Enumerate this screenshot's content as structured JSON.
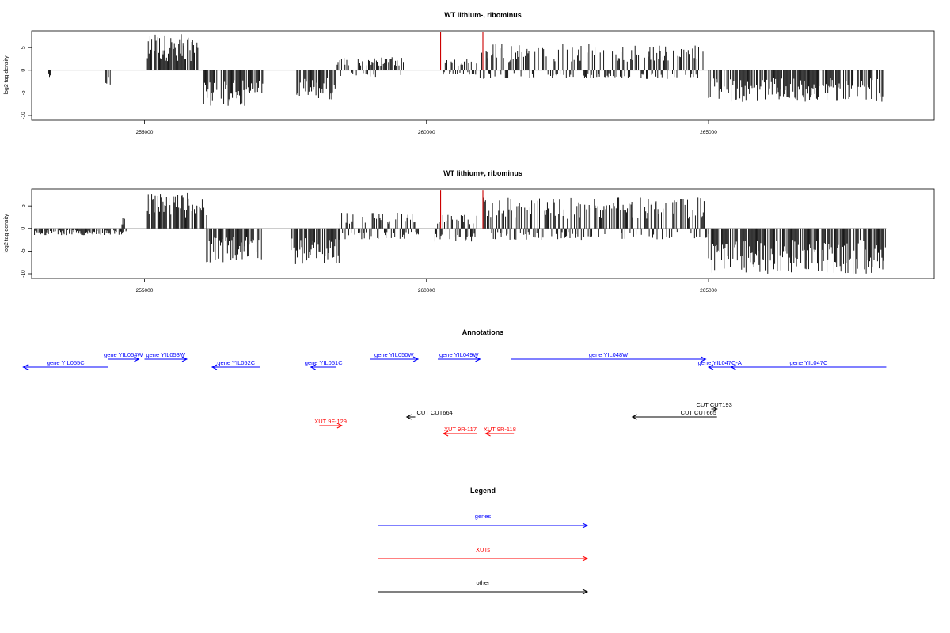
{
  "chart_data": [
    {
      "type": "bar",
      "title": "WT lithium-, ribominus",
      "ylabel": "log2 tag density",
      "xlabel": "",
      "xlim": [
        253000,
        269000
      ],
      "ylim": [
        -10,
        8
      ],
      "x_ticks": [
        255000,
        260000,
        265000
      ],
      "x_tick_labels": [
        "255000",
        "260000",
        "265000"
      ],
      "y_ticks": [
        -10,
        -5,
        0,
        5
      ],
      "y_tick_labels": [
        "-10",
        "-5",
        "0",
        "5"
      ],
      "series": [
        {
          "color": "#000000",
          "regions": [
            {
              "x0": 253300,
              "x1": 253350,
              "min": -1.5,
              "max": 0
            },
            {
              "x0": 254300,
              "x1": 254400,
              "min": -3.5,
              "max": 0
            },
            {
              "x0": 255050,
              "x1": 255950,
              "min": 0,
              "max": 8
            },
            {
              "x0": 256050,
              "x1": 256850,
              "min": -8,
              "max": 0
            },
            {
              "x0": 256850,
              "x1": 257100,
              "min": -6,
              "max": 0
            },
            {
              "x0": 257700,
              "x1": 258400,
              "min": -6.5,
              "max": 0
            },
            {
              "x0": 258400,
              "x1": 259600,
              "min": -1.5,
              "max": 3
            },
            {
              "x0": 260300,
              "x1": 260900,
              "min": -1,
              "max": 2.5
            },
            {
              "x0": 260950,
              "x1": 264950,
              "min": -2,
              "max": 6
            },
            {
              "x0": 265000,
              "x1": 268100,
              "min": -7,
              "max": 0
            }
          ]
        },
        {
          "color": "#cc0000",
          "spikes": [
            {
              "x": 260250,
              "value": 8.5
            },
            {
              "x": 261000,
              "value": 8.5
            }
          ]
        }
      ]
    },
    {
      "type": "bar",
      "title": "WT lithium+, ribominus",
      "ylabel": "log2 tag density",
      "xlabel": "",
      "xlim": [
        253000,
        269000
      ],
      "ylim": [
        -10,
        8
      ],
      "x_ticks": [
        255000,
        260000,
        265000
      ],
      "x_tick_labels": [
        "255000",
        "260000",
        "265000"
      ],
      "y_ticks": [
        -10,
        -5,
        0,
        5
      ],
      "y_tick_labels": [
        "-10",
        "-5",
        "0",
        "5"
      ],
      "series": [
        {
          "color": "#000000",
          "regions": [
            {
              "x0": 253050,
              "x1": 254700,
              "min": -1.5,
              "max": 0
            },
            {
              "x0": 254600,
              "x1": 254650,
              "min": 0,
              "max": 3.5
            },
            {
              "x0": 255050,
              "x1": 256100,
              "min": 0,
              "max": 8
            },
            {
              "x0": 256100,
              "x1": 257100,
              "min": -7.5,
              "max": 0
            },
            {
              "x0": 257600,
              "x1": 258450,
              "min": -8,
              "max": 0
            },
            {
              "x0": 258450,
              "x1": 259900,
              "min": -2.5,
              "max": 3.5
            },
            {
              "x0": 260150,
              "x1": 260900,
              "min": -3,
              "max": 3
            },
            {
              "x0": 261000,
              "x1": 265000,
              "min": -2.5,
              "max": 7
            },
            {
              "x0": 265000,
              "x1": 268150,
              "min": -10,
              "max": 0
            }
          ]
        },
        {
          "color": "#cc0000",
          "spikes": [
            {
              "x": 260250,
              "value": 8.5
            },
            {
              "x": 261000,
              "value": 8.5
            }
          ]
        }
      ]
    }
  ],
  "annotations": {
    "title": "Annotations",
    "genes": [
      {
        "label": "gene YIL055C",
        "start": 252850,
        "end": 254350,
        "dir": "left",
        "row": 1
      },
      {
        "label": "gene YIL054W",
        "start": 254350,
        "end": 254900,
        "dir": "right",
        "row": 0
      },
      {
        "label": "gene YIL053W",
        "start": 255000,
        "end": 255750,
        "dir": "right",
        "row": 0
      },
      {
        "label": "gene YIL052C",
        "start": 256200,
        "end": 257050,
        "dir": "left",
        "row": 1
      },
      {
        "label": "gene YIL051C",
        "start": 257950,
        "end": 258400,
        "dir": "left",
        "row": 1
      },
      {
        "label": "gene YIL050W",
        "start": 259000,
        "end": 259850,
        "dir": "right",
        "row": 0
      },
      {
        "label": "gene YIL049W",
        "start": 260200,
        "end": 260950,
        "dir": "right",
        "row": 0
      },
      {
        "label": "gene YIL048W",
        "start": 261500,
        "end": 264950,
        "dir": "right",
        "row": 0
      },
      {
        "label": "gene YIL047C-A",
        "start": 265000,
        "end": 265400,
        "dir": "left",
        "row": 1
      },
      {
        "label": "gene YIL047C",
        "start": 265400,
        "end": 268150,
        "dir": "left",
        "row": 1
      }
    ],
    "cuts": [
      {
        "label": "CUT CUT664",
        "start": 259650,
        "end": 259800,
        "dir": "left",
        "row": 0
      },
      {
        "label": "CUT CUT665",
        "start": 263650,
        "end": 265150,
        "dir": "left",
        "row": 0
      },
      {
        "label": "CUT CUT193",
        "start": 265050,
        "end": 265150,
        "dir": "right",
        "row": -1
      }
    ],
    "xuts": [
      {
        "label": "XUT 9F-129",
        "start": 258100,
        "end": 258500,
        "dir": "right",
        "row": 0
      },
      {
        "label": "XUT 9R-117",
        "start": 260300,
        "end": 260900,
        "dir": "left",
        "row": 1
      },
      {
        "label": "XUT 9R-118",
        "start": 261050,
        "end": 261550,
        "dir": "left",
        "row": 1
      }
    ]
  },
  "legend": {
    "title": "Legend",
    "items": [
      {
        "label": "genes",
        "color": "#0000ff"
      },
      {
        "label": "XUTs",
        "color": "#ff0000"
      },
      {
        "label": "other",
        "color": "#000000"
      }
    ]
  },
  "colors": {
    "gene": "#0000ff",
    "xut": "#ff0000",
    "other": "#000000",
    "baseline": "#999999"
  }
}
